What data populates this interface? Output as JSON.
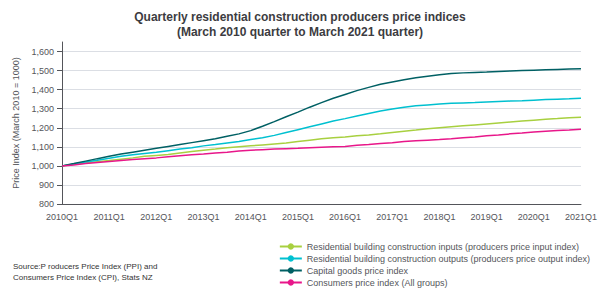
{
  "chart_data": {
    "type": "line",
    "title": "Quarterly residential construction producers price indices\n(March 2010 quarter to March 2021 quarter)",
    "ylabel": "Price Index (March 2010 = 1000)",
    "annotations": [
      "Source:P roducers Price Index (PPI) and\nConsumers Price Index (CPI), Stats NZ"
    ],
    "categories": [
      "2010Q1",
      null,
      null,
      null,
      "2011Q1",
      null,
      null,
      null,
      "2012Q1",
      null,
      null,
      null,
      "2013Q1",
      null,
      null,
      null,
      "2014Q1",
      null,
      null,
      null,
      "2015Q1",
      null,
      null,
      null,
      "2016Q1",
      null,
      null,
      null,
      "2017Q1",
      null,
      null,
      null,
      "2018Q1",
      null,
      null,
      null,
      "2019Q1",
      null,
      null,
      null,
      "2020Q1",
      null,
      null,
      null,
      "2021Q1"
    ],
    "ylim": [
      800,
      1650
    ],
    "yticks": [
      800,
      900,
      {
        "value": 1000,
        "label": "1,000"
      },
      {
        "value": 1100,
        "label": "1,100"
      },
      {
        "value": 1200,
        "label": "1,200"
      },
      {
        "value": 1300,
        "label": "1,300"
      },
      {
        "value": 1400,
        "label": "1,400"
      },
      {
        "value": 1500,
        "label": "1,500"
      },
      {
        "value": 1600,
        "label": "1,600"
      }
    ],
    "grid": true,
    "legend": "bottom",
    "series": [
      {
        "name": "Residential building construction inputs (producers price input index)",
        "color": "#a8d040",
        "values": [
          1000,
          1008,
          1015,
          1022,
          1028,
          1035,
          1042,
          1050,
          1055,
          1060,
          1068,
          1075,
          1082,
          1088,
          1095,
          1100,
          1105,
          1110,
          1115,
          1120,
          1128,
          1135,
          1142,
          1148,
          1152,
          1158,
          1162,
          1168,
          1175,
          1182,
          1188,
          1195,
          1200,
          1205,
          1210,
          1215,
          1220,
          1225,
          1230,
          1235,
          1240,
          1245,
          1248,
          1252,
          1255
        ]
      },
      {
        "name": "Residential building construction outputs (producers price output index)",
        "color": "#00c0d0",
        "values": [
          1000,
          1010,
          1020,
          1030,
          1040,
          1050,
          1058,
          1065,
          1072,
          1080,
          1088,
          1095,
          1105,
          1112,
          1120,
          1128,
          1138,
          1148,
          1160,
          1175,
          1190,
          1205,
          1220,
          1235,
          1248,
          1262,
          1275,
          1288,
          1298,
          1308,
          1315,
          1320,
          1325,
          1328,
          1330,
          1332,
          1335,
          1338,
          1340,
          1342,
          1345,
          1348,
          1350,
          1352,
          1355
        ]
      },
      {
        "name": "Capital goods price index",
        "color": "#006064",
        "values": [
          1000,
          1012,
          1025,
          1038,
          1050,
          1062,
          1072,
          1082,
          1092,
          1102,
          1112,
          1122,
          1132,
          1142,
          1155,
          1168,
          1185,
          1208,
          1232,
          1258,
          1282,
          1308,
          1332,
          1355,
          1375,
          1395,
          1412,
          1428,
          1440,
          1452,
          1462,
          1470,
          1478,
          1485,
          1488,
          1490,
          1492,
          1495,
          1498,
          1500,
          1502,
          1504,
          1506,
          1508,
          1510
        ]
      },
      {
        "name": "Consumers price index (All groups)",
        "color": "#e8178a",
        "values": [
          1000,
          1005,
          1012,
          1018,
          1023,
          1028,
          1033,
          1038,
          1042,
          1048,
          1053,
          1058,
          1062,
          1068,
          1072,
          1078,
          1082,
          1085,
          1088,
          1090,
          1092,
          1095,
          1098,
          1100,
          1102,
          1108,
          1112,
          1118,
          1122,
          1128,
          1132,
          1135,
          1138,
          1142,
          1148,
          1152,
          1158,
          1162,
          1168,
          1172,
          1178,
          1182,
          1185,
          1188,
          1192
        ]
      }
    ]
  }
}
